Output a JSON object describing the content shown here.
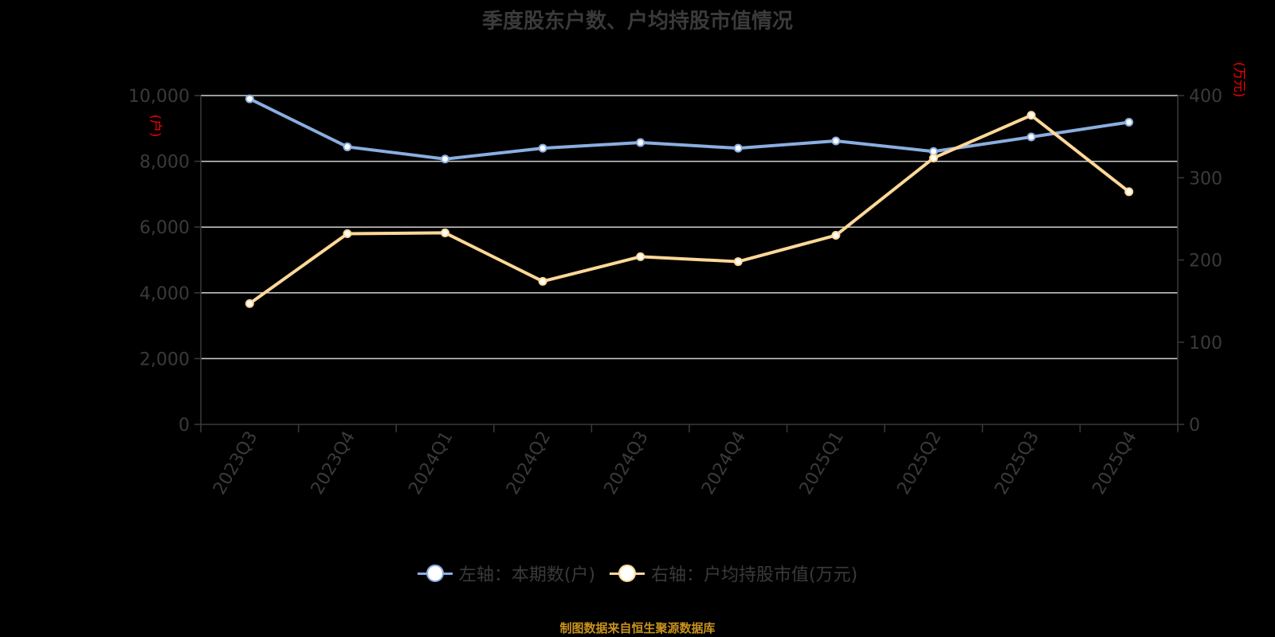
{
  "chart_data": {
    "type": "line",
    "title": "季度股东户数、户均持股市值情况",
    "categories": [
      "2023Q3",
      "2023Q4",
      "2024Q1",
      "2024Q2",
      "2024Q3",
      "2024Q4",
      "2025Q1",
      "2025Q2",
      "2025Q3",
      "2025Q4"
    ],
    "series": [
      {
        "name": "左轴：本期数(户)",
        "axis": "left",
        "color": "#8aaee0",
        "values": [
          9900,
          8440,
          8070,
          8400,
          8570,
          8400,
          8620,
          8300,
          8740,
          9190
        ]
      },
      {
        "name": "右轴：户均持股市值(万元)",
        "axis": "right",
        "color": "#ffd898",
        "values": [
          147,
          232,
          233,
          174,
          204,
          198,
          230,
          324,
          376,
          283
        ]
      }
    ],
    "left_axis": {
      "unit_label": "(户)",
      "min": 0,
      "max": 10000,
      "ticks": [
        "0",
        "2,000",
        "4,000",
        "6,000",
        "8,000",
        "10,000"
      ]
    },
    "right_axis": {
      "unit_label": "(万元)",
      "min": 0,
      "max": 400,
      "ticks": [
        "0",
        "100",
        "200",
        "300",
        "400"
      ]
    },
    "xlabel": "",
    "ylabel": "本期数(户)",
    "ylabel_right": "户均持股市值(万元)",
    "grid": true,
    "legend_position": "bottom"
  },
  "legend": {
    "left_label": "左轴：本期数(户)",
    "right_label": "右轴：户均持股市值(万元)"
  },
  "source": "制图数据来自恒生聚源数据库",
  "colors": {
    "blue": "#8aaee0",
    "orange": "#ffd898",
    "unit": "#ff0000",
    "source": "#c8921e"
  }
}
